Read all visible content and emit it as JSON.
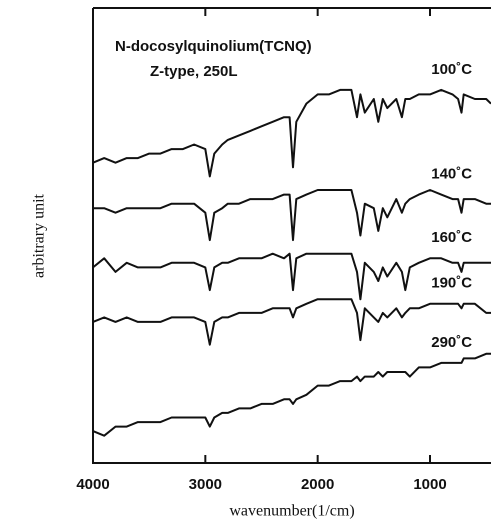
{
  "chart_data": {
    "type": "line",
    "annotations": [
      "N-docosylquinolium(TCNQ)",
      "Z-type, 250L"
    ],
    "x_label": "wavenumber(1/cm)",
    "y_label": "arbitrary  unit",
    "xlim": [
      4000,
      457
    ],
    "xticks": [
      4000,
      3000,
      2000,
      1000
    ],
    "ylim": [
      0,
      100
    ],
    "x": [
      4000,
      3900,
      3800,
      3700,
      3600,
      3500,
      3400,
      3300,
      3200,
      3100,
      3000,
      2960,
      2920,
      2850,
      2800,
      2700,
      2600,
      2500,
      2400,
      2300,
      2250,
      2220,
      2190,
      2100,
      2000,
      1900,
      1800,
      1700,
      1650,
      1620,
      1580,
      1500,
      1460,
      1420,
      1380,
      1300,
      1250,
      1220,
      1180,
      1100,
      1000,
      900,
      800,
      750,
      720,
      700,
      600,
      500,
      457
    ],
    "series": [
      {
        "name": "100˚C",
        "color": "#111111",
        "values": [
          66,
          67,
          66,
          67,
          67,
          68,
          68,
          69,
          69,
          70,
          69,
          63,
          68,
          70,
          71,
          72,
          73,
          74,
          75,
          76,
          76,
          65,
          75,
          79,
          81,
          81,
          82,
          82,
          76,
          81,
          77,
          80,
          75,
          80,
          78,
          80,
          76,
          80,
          80,
          81,
          81,
          82,
          81,
          80,
          77,
          81,
          80,
          80,
          79
        ]
      },
      {
        "name": "140˚C",
        "color": "#111111",
        "values": [
          56,
          56,
          55,
          56,
          56,
          56,
          56,
          57,
          57,
          57,
          55,
          49,
          55,
          56,
          57,
          57,
          58,
          58,
          58,
          59,
          59,
          49,
          58,
          59,
          60,
          60,
          60,
          60,
          55,
          50,
          57,
          56,
          51,
          56,
          54,
          58,
          55,
          57,
          58,
          59,
          60,
          59,
          58,
          58,
          55,
          58,
          58,
          57,
          57
        ]
      },
      {
        "name": "160˚C",
        "color": "#111111",
        "values": [
          43,
          45,
          42,
          44,
          43,
          43,
          43,
          44,
          44,
          44,
          43,
          38,
          43,
          44,
          44,
          45,
          45,
          45,
          46,
          45,
          46,
          38,
          45,
          46,
          46,
          46,
          46,
          46,
          42,
          36,
          44,
          42,
          40,
          43,
          41,
          44,
          42,
          38,
          43,
          44,
          45,
          45,
          44,
          44,
          42,
          44,
          44,
          44,
          44
        ]
      },
      {
        "name": "190˚C",
        "color": "#111111",
        "values": [
          31,
          32,
          31,
          32,
          31,
          31,
          31,
          32,
          32,
          32,
          31,
          26,
          31,
          32,
          32,
          33,
          33,
          33,
          34,
          34,
          34,
          32,
          34,
          35,
          36,
          36,
          36,
          36,
          33,
          27,
          34,
          32,
          31,
          33,
          32,
          34,
          32,
          33,
          34,
          34,
          35,
          35,
          35,
          35,
          34,
          35,
          35,
          33,
          33
        ]
      },
      {
        "name": "290˚C",
        "color": "#111111",
        "values": [
          7,
          6,
          8,
          8,
          9,
          9,
          9,
          10,
          10,
          10,
          10,
          8,
          10,
          11,
          11,
          12,
          12,
          13,
          13,
          14,
          14,
          13,
          14,
          15,
          17,
          17,
          18,
          18,
          19,
          18,
          19,
          19,
          20,
          19,
          20,
          20,
          20,
          20,
          19,
          21,
          21,
          22,
          22,
          22,
          22,
          23,
          23,
          24,
          24
        ]
      }
    ]
  }
}
